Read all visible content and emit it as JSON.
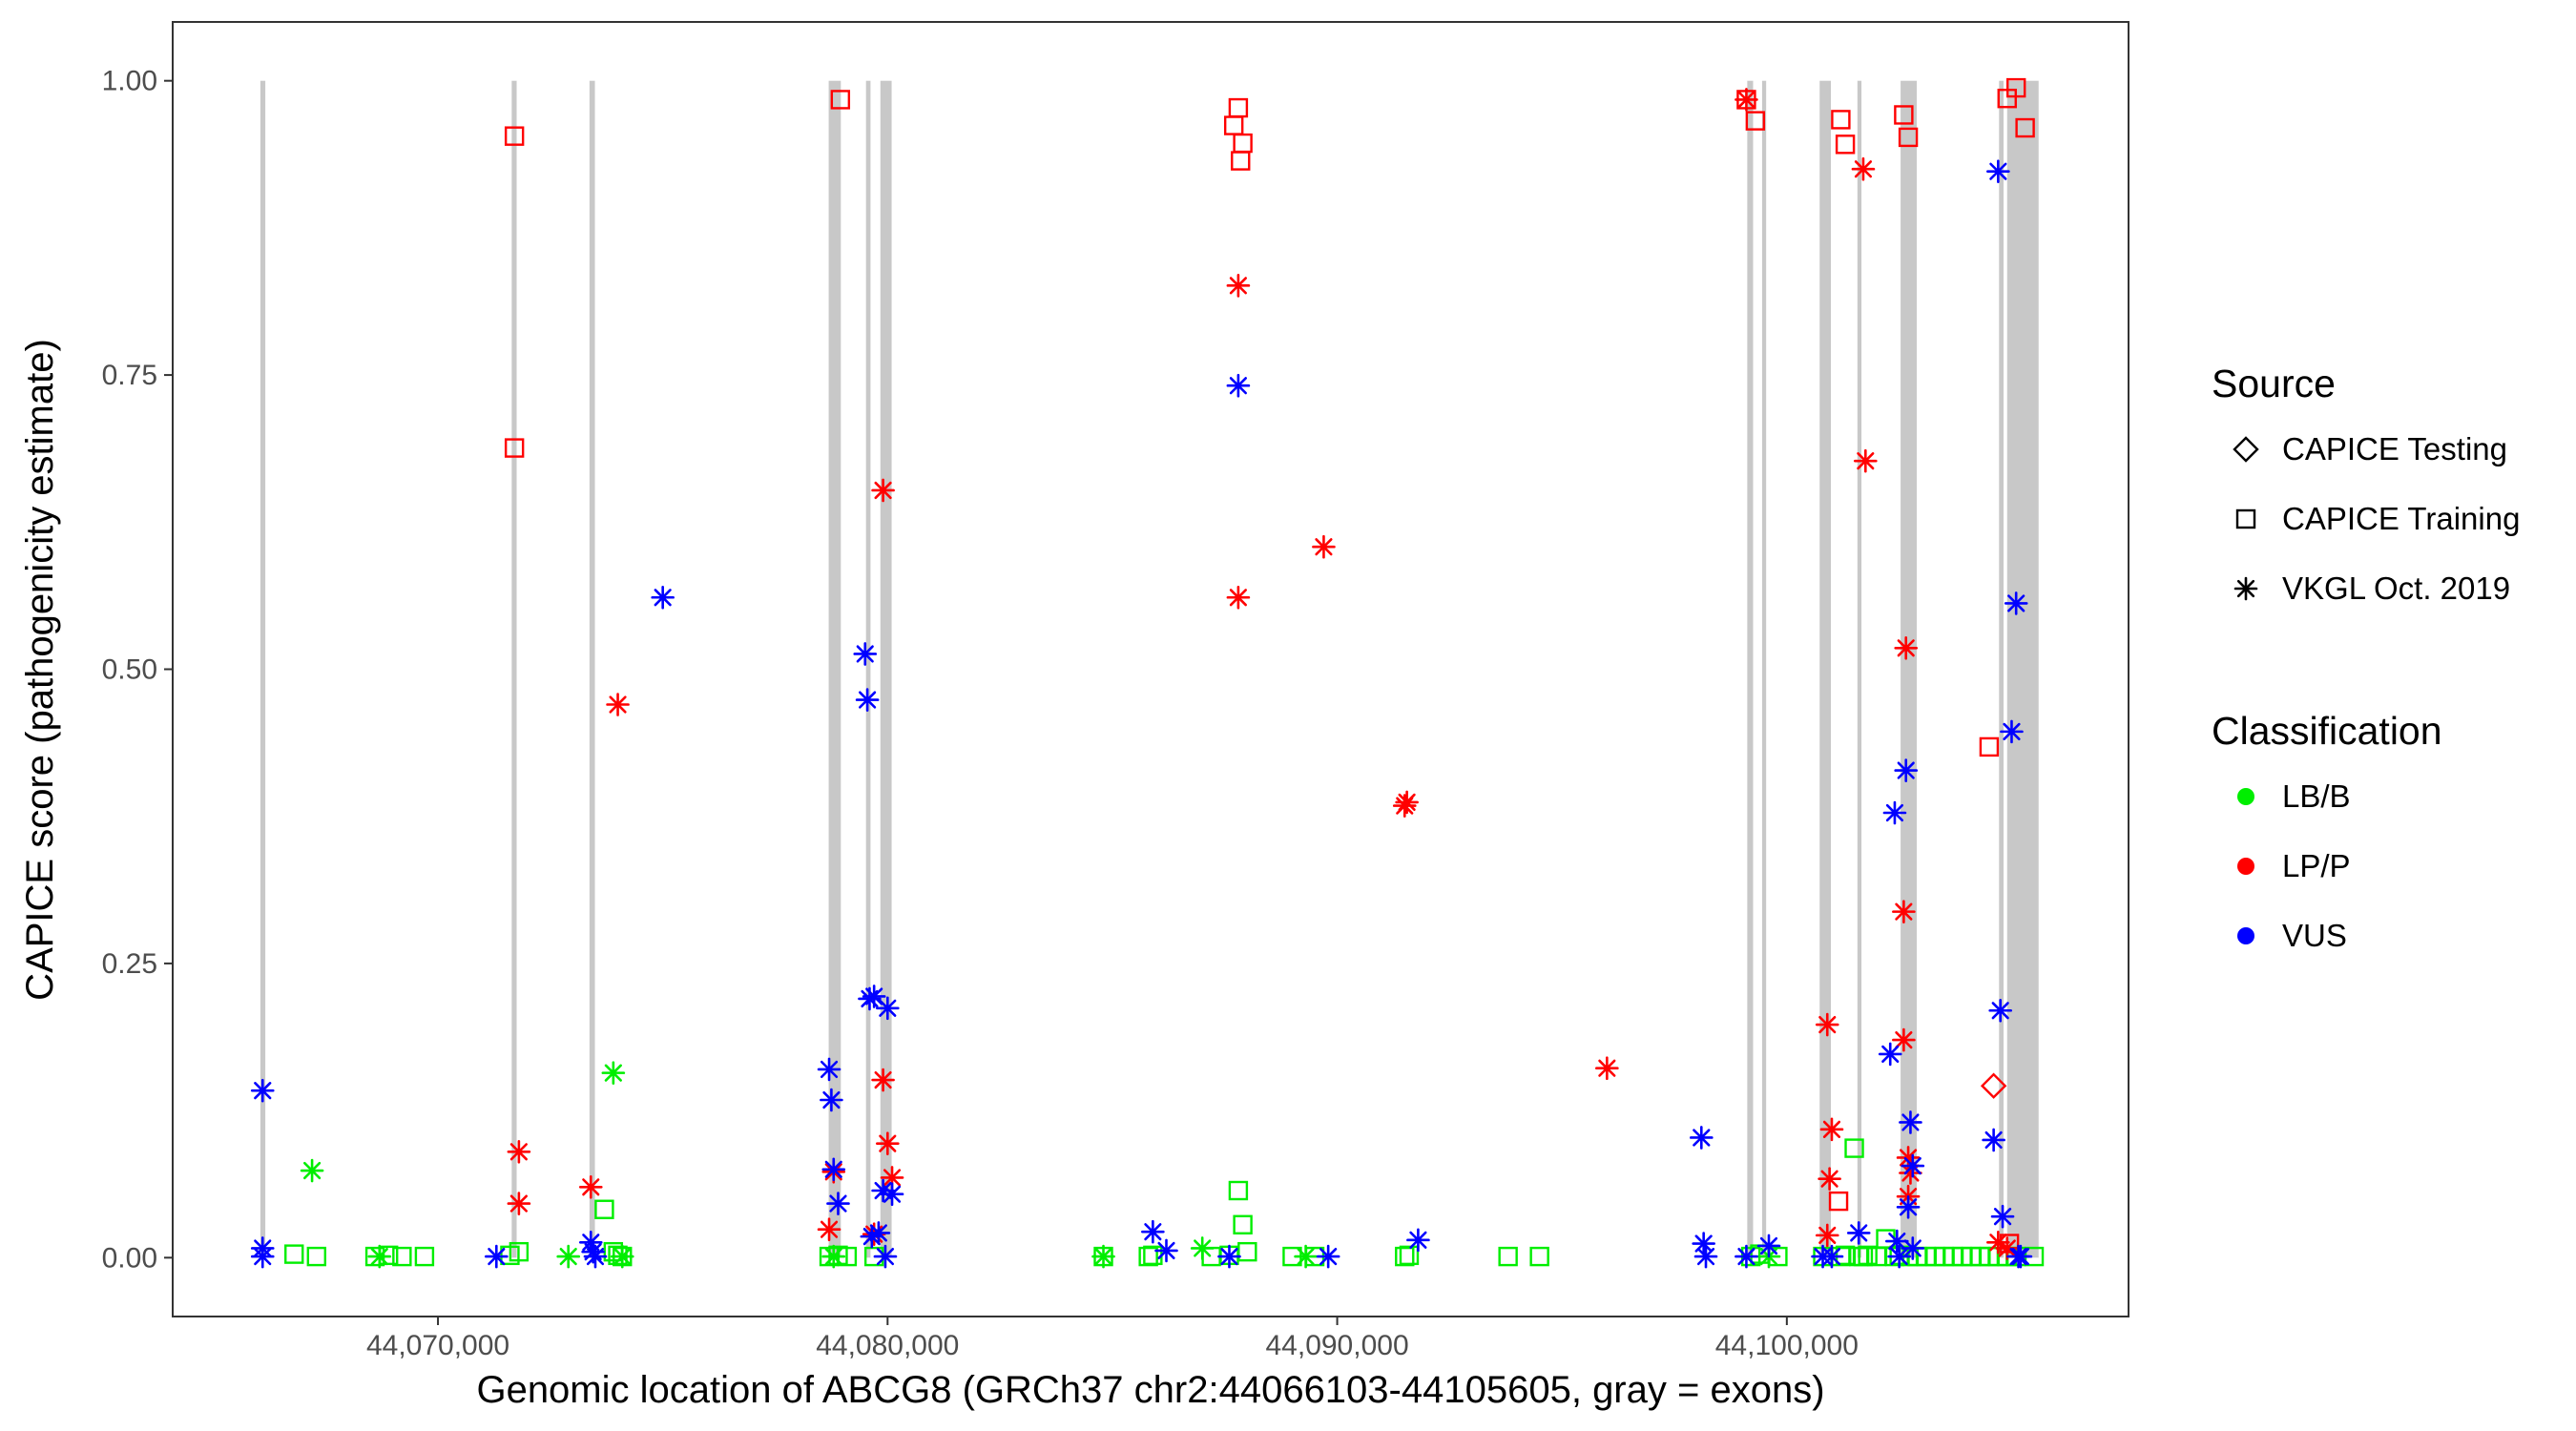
{
  "chart_data": {
    "type": "scatter",
    "title": "",
    "xlabel": "Genomic location of ABCG8 (GRCh37 chr2:44066103-44105605, gray = exons)",
    "ylabel": "CAPICE score (pathogenicity estimate)",
    "xlim": [
      44064100,
      44107600
    ],
    "ylim": [
      -0.05,
      1.05
    ],
    "x_ticks": [
      44070000,
      44080000,
      44090000,
      44100000
    ],
    "x_tick_labels": [
      "44,070,000",
      "44,080,000",
      "44,090,000",
      "44,100,000"
    ],
    "y_ticks": [
      0,
      0.25,
      0.5,
      0.75,
      1
    ],
    "y_tick_labels": [
      "0.00",
      "0.25",
      "0.50",
      "0.75",
      "1.00"
    ],
    "grid": false,
    "exons": [
      [
        44066050,
        44066160
      ],
      [
        44071640,
        44071750
      ],
      [
        44073370,
        44073490
      ],
      [
        44078690,
        44078960
      ],
      [
        44079520,
        44079620
      ],
      [
        44079840,
        44080090
      ],
      [
        44099120,
        44099250
      ],
      [
        44099450,
        44099540
      ],
      [
        44100730,
        44100980
      ],
      [
        44101570,
        44101660
      ],
      [
        44102530,
        44102890
      ],
      [
        44104720,
        44104820
      ],
      [
        44104900,
        44105600
      ]
    ],
    "legend_placement": "right",
    "legend": {
      "source": {
        "title": "Source",
        "items": [
          {
            "label": "CAPICE Testing",
            "shape": "diamond"
          },
          {
            "label": "CAPICE Training",
            "shape": "square"
          },
          {
            "label": "VKGL Oct. 2019",
            "shape": "asterisk"
          }
        ]
      },
      "classification": {
        "title": "Classification",
        "items": [
          {
            "label": "LB/B",
            "color": "#00ee00"
          },
          {
            "label": "LP/P",
            "color": "#ff0000"
          },
          {
            "label": "VUS",
            "color": "#0000ff"
          }
        ]
      }
    },
    "colors": {
      "LB/B": "#00ee00",
      "LP/P": "#ff0000",
      "VUS": "#0000ff"
    },
    "series": [
      {
        "name": "LB/B",
        "source_points": [
          {
            "source": "CAPICE Training",
            "x": [
              44066800,
              44067300,
              44068600,
              44068900,
              44069200,
              44069700,
              44071600,
              44071800,
              44073700,
              44073900,
              44074000,
              44074100,
              44078700,
              44078900,
              44079100,
              44079700,
              44084800,
              44085800,
              44085900,
              44087200,
              44087600,
              44087800,
              44087900,
              44088000,
              44089000,
              44089500,
              44091500,
              44091600,
              44093800,
              44094500,
              44099200,
              44099400,
              44099800,
              44100800,
              44101200,
              44101300,
              44101500,
              44101600,
              44101700,
              44101800,
              44102000,
              44102200,
              44102400,
              44102500,
              44102700,
              44102900,
              44103100,
              44103300,
              44103500,
              44103700,
              44103900,
              44104100,
              44104300,
              44104500,
              44104700,
              44104900,
              44105100,
              44105500
            ],
            "y": [
              0.003,
              0.001,
              0.001,
              0.002,
              0.001,
              0.001,
              0.002,
              0.005,
              0.041,
              0.005,
              0.002,
              0.001,
              0.001,
              0.002,
              0.001,
              0.001,
              0.001,
              0.001,
              0.002,
              0.001,
              0.002,
              0.057,
              0.028,
              0.005,
              0.001,
              0.001,
              0.001,
              0.002,
              0.001,
              0.001,
              0.001,
              0.003,
              0.001,
              0.001,
              0.001,
              0.002,
              0.093,
              0.001,
              0.001,
              0.002,
              0.001,
              0.016,
              0.001,
              0.002,
              0.001,
              0.001,
              0.001,
              0.001,
              0.001,
              0.001,
              0.001,
              0.001,
              0.001,
              0.001,
              0.001,
              0.001,
              0.001,
              0.001
            ]
          },
          {
            "source": "VKGL Oct. 2019",
            "x": [
              44067200,
              44068700,
              44072900,
              44073900,
              44074100,
              44078800,
              44084800,
              44087000,
              44089300,
              44099600
            ],
            "y": [
              0.074,
              0.001,
              0.001,
              0.157,
              0.001,
              0.001,
              0.001,
              0.008,
              0.001,
              0.001
            ]
          }
        ]
      },
      {
        "name": "LP/P",
        "source_points": [
          {
            "source": "CAPICE Training",
            "x": [
              44071700,
              44071700,
              44078950,
              44087700,
              44087800,
              44087900,
              44087850,
              44099100,
              44099300,
              44101200,
              44101300,
              44101150,
              44102600,
              44102700,
              44104500,
              44104900,
              44105100,
              44105300,
              44104950
            ],
            "y": [
              0.953,
              0.688,
              0.984,
              0.962,
              0.977,
              0.947,
              0.932,
              0.984,
              0.966,
              0.967,
              0.946,
              0.048,
              0.971,
              0.952,
              0.434,
              0.985,
              0.994,
              0.96,
              0.012
            ]
          },
          {
            "source": "CAPICE Testing",
            "x": [
              44104600
            ],
            "y": [
              0.146
            ]
          },
          {
            "source": "VKGL Oct. 2019",
            "x": [
              44071800,
              44071800,
              44073400,
              44074000,
              44078700,
              44078800,
              44079700,
              44079900,
              44080000,
              44080100,
              44079900,
              44087800,
              44087800,
              44089700,
              44091500,
              44091550,
              44096000,
              44099100,
              44100900,
              44101000,
              44100950,
              44101700,
              44101750,
              44102600,
              44102650,
              44102700,
              44102750,
              44102600,
              44102700,
              44100900,
              44104700,
              44104900
            ],
            "y": [
              0.09,
              0.046,
              0.06,
              0.47,
              0.024,
              0.073,
              0.02,
              0.151,
              0.097,
              0.068,
              0.652,
              0.826,
              0.561,
              0.604,
              0.384,
              0.387,
              0.161,
              0.984,
              0.198,
              0.109,
              0.067,
              0.925,
              0.677,
              0.294,
              0.518,
              0.085,
              0.072,
              0.185,
              0.052,
              0.019,
              0.013,
              0.008
            ]
          }
        ]
      },
      {
        "name": "VUS",
        "source_points": [
          {
            "source": "VKGL Oct. 2019",
            "x": [
              44066100,
              44066100,
              44066100,
              44071300,
              44073400,
              44073450,
              44073500,
              44075000,
              44078700,
              44078750,
              44078800,
              44078900,
              44079500,
              44079550,
              44079600,
              44079700,
              44079650,
              44079800,
              44080000,
              44080100,
              44079900,
              44079950,
              44085900,
              44086200,
              44087600,
              44087800,
              44089800,
              44091800,
              44098100,
              44098150,
              44098200,
              44099100,
              44099600,
              44101600,
              44102300,
              44102400,
              44102450,
              44102650,
              44102750,
              44102800,
              44102700,
              44102800,
              44104600,
              44104700,
              44104750,
              44104800,
              44105000,
              44105100,
              44105200,
              44105150,
              44100800,
              44101000,
              44102500
            ],
            "y": [
              0.142,
              0.008,
              0.001,
              0.001,
              0.013,
              0.005,
              0.001,
              0.561,
              0.16,
              0.134,
              0.075,
              0.046,
              0.513,
              0.474,
              0.22,
              0.222,
              0.018,
              0.021,
              0.212,
              0.054,
              0.057,
              0.001,
              0.022,
              0.006,
              0.001,
              0.741,
              0.001,
              0.015,
              0.102,
              0.012,
              0.001,
              0.001,
              0.01,
              0.021,
              0.173,
              0.378,
              0.014,
              0.414,
              0.115,
              0.078,
              0.043,
              0.008,
              0.1,
              0.923,
              0.21,
              0.035,
              0.447,
              0.556,
              0.001,
              0.001,
              0.001,
              0.001,
              0.001
            ]
          }
        ]
      }
    ]
  }
}
